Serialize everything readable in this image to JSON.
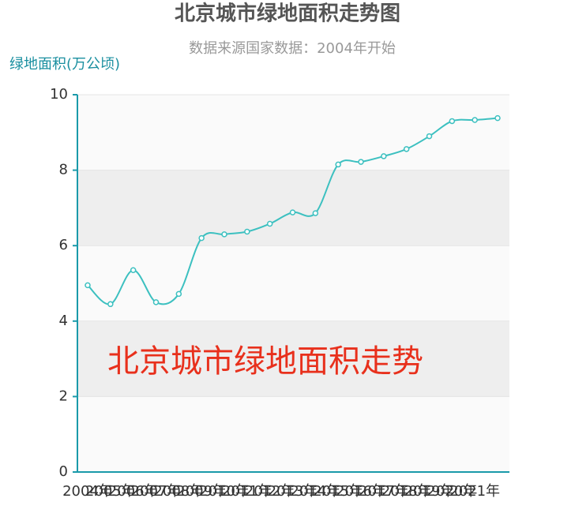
{
  "chart_data": {
    "type": "line",
    "title": "北京城市绿地面积走势图",
    "subtitle": "数据来源国家数据：2004年开始",
    "y_label": "绿地面积(万公顷)",
    "annotation": "北京城市绿地面积走势",
    "categories": [
      "2004年",
      "2005年",
      "2006年",
      "2007年",
      "2008年",
      "2009年",
      "2010年",
      "2011年",
      "2012年",
      "2013年",
      "2014年",
      "2015年",
      "2016年",
      "2017年",
      "2018年",
      "2019年",
      "2020年",
      "2021年",
      null
    ],
    "series": [
      {
        "name": "绿地面积",
        "color": "#3cc0c0",
        "values": [
          4.95,
          4.45,
          5.35,
          4.5,
          4.72,
          6.2,
          6.3,
          6.37,
          6.58,
          6.88,
          6.86,
          8.15,
          8.22,
          8.37,
          8.56,
          8.9,
          9.3,
          9.33,
          9.38
        ]
      }
    ],
    "ylim": [
      0,
      10
    ],
    "yticks": [
      0,
      2,
      4,
      6,
      8,
      10
    ],
    "grid": true
  }
}
